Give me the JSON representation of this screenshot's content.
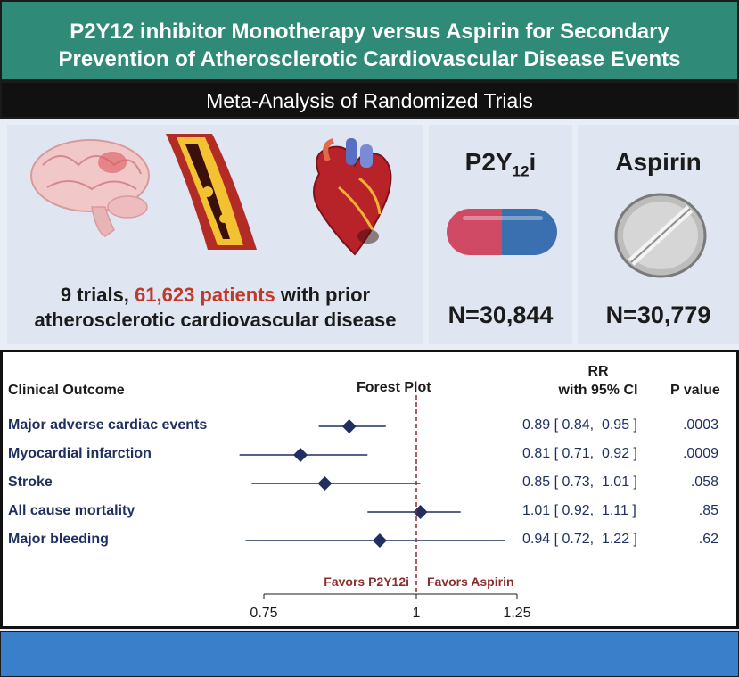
{
  "title": {
    "line1": "P2Y12 inhibitor Monotherapy versus Aspirin for Secondary",
    "line2": "Prevention of  Atherosclerotic Cardiovascular Disease Events"
  },
  "subtitle": "Meta-Analysis of Randomized Trials",
  "summary": {
    "trials_part": "9 trials, ",
    "patients_part": "61,623 patients",
    "rest_line1": " with prior",
    "line2": "atherosclerotic cardiovascular disease",
    "highlight_color": "#c0392b"
  },
  "arms": {
    "p2y12": {
      "label_main": "P2Y",
      "label_sub": "12",
      "label_end": "i",
      "n": "N=30,844"
    },
    "aspirin": {
      "label": "Aspirin",
      "n": "N=30,779"
    }
  },
  "icons": [
    "brain-icon",
    "artery-icon",
    "heart-icon",
    "capsule-icon",
    "tablet-icon"
  ],
  "table_headers": {
    "outcome": "Clinical Outcome",
    "forest": "Forest Plot",
    "rr_line1": "RR",
    "rr_line2": "with 95% CI",
    "p": "P value"
  },
  "chart_data": {
    "type": "forest",
    "reference_line": 1,
    "xlim": [
      0.75,
      1.25
    ],
    "xticks": [
      "0.75",
      "1",
      "1.25"
    ],
    "favors_left": "Favors P2Y12i",
    "favors_right": "Favors Aspirin",
    "marker_color": "#1f2f5f",
    "reference_color": "#8b2e2e",
    "rows": [
      {
        "outcome": "Major adverse cardiac events",
        "rr": 0.89,
        "lo": 0.84,
        "hi": 0.95,
        "rr_text": "0.89 [ 0.84,  0.95 ]",
        "p": ".0003"
      },
      {
        "outcome": "Myocardial infarction",
        "rr": 0.81,
        "lo": 0.71,
        "hi": 0.92,
        "rr_text": "0.81 [ 0.71,  0.92 ]",
        "p": ".0009"
      },
      {
        "outcome": "Stroke",
        "rr": 0.85,
        "lo": 0.73,
        "hi": 1.01,
        "rr_text": "0.85 [ 0.73,  1.01 ]",
        "p": ".058"
      },
      {
        "outcome": "All cause mortality",
        "rr": 1.01,
        "lo": 0.92,
        "hi": 1.11,
        "rr_text": "1.01 [ 0.92,  1.11 ]",
        "p": ".85"
      },
      {
        "outcome": "Major bleeding",
        "rr": 0.94,
        "lo": 0.72,
        "hi": 1.22,
        "rr_text": "0.94 [ 0.72,  1.22 ]",
        "p": ".62"
      }
    ]
  }
}
